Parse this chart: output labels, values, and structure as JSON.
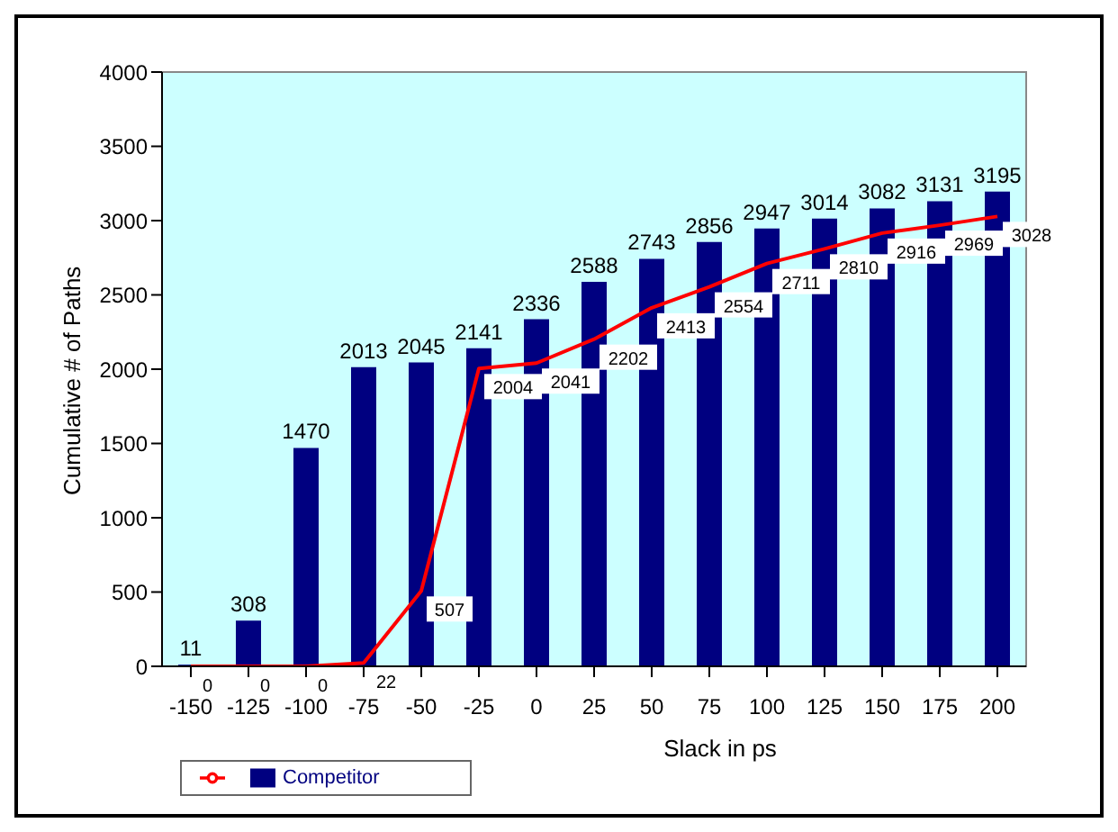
{
  "chart_data": {
    "type": "bar",
    "xlabel": "Slack in ps",
    "ylabel": "Cumulative # of Paths",
    "categories": [
      "-150",
      "-125",
      "-100",
      "-75",
      "-50",
      "-25",
      "0",
      "25",
      "50",
      "75",
      "100",
      "125",
      "150",
      "175",
      "200"
    ],
    "series": [
      {
        "name": "Competitor",
        "color": "#000080",
        "values": [
          11,
          308,
          1470,
          2013,
          2045,
          2141,
          2336,
          2588,
          2743,
          2856,
          2947,
          3014,
          3082,
          3131,
          3195
        ]
      },
      {
        "type": "line",
        "color": "#ff0000",
        "values": [
          0,
          0,
          0,
          22,
          507,
          2004,
          2041,
          2202,
          2413,
          2554,
          2711,
          2810,
          2916,
          2969,
          3028
        ]
      }
    ],
    "ylim": [
      0,
      4000
    ],
    "yticks": [
      0,
      500,
      1000,
      1500,
      2000,
      2500,
      3000,
      3500,
      4000
    ],
    "legend": "bottom left",
    "data_labels": true,
    "marker": "none"
  }
}
